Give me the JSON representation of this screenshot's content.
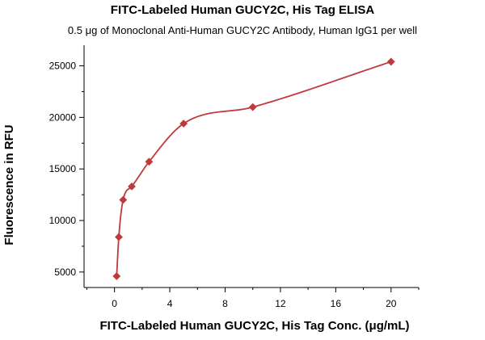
{
  "chart_data": {
    "type": "scatter",
    "title": "FITC-Labeled Human GUCY2C, His Tag ELISA",
    "subtitle": "0.5 μg of Monoclonal Anti-Human GUCY2C Antibody, Human IgG1 per well",
    "xlabel": "FITC-Labeled Human GUCY2C, His Tag Conc. (μg/mL)",
    "ylabel": "Fluorescence in RFU",
    "xlim": [
      -2.2,
      22
    ],
    "ylim": [
      3500,
      27000
    ],
    "xticks": [
      0,
      4,
      8,
      12,
      16,
      20
    ],
    "yticks": [
      5000,
      10000,
      15000,
      20000,
      25000
    ],
    "grid": false,
    "colors": {
      "series": "#c0393b"
    },
    "series": [
      {
        "marker": "diamond",
        "x": [
          0.156,
          0.3125,
          0.625,
          1.25,
          2.5,
          5,
          10,
          20
        ],
        "y": [
          4600,
          8400,
          12000,
          13300,
          15700,
          19400,
          21000,
          25400
        ],
        "fit_curve": true
      }
    ]
  }
}
